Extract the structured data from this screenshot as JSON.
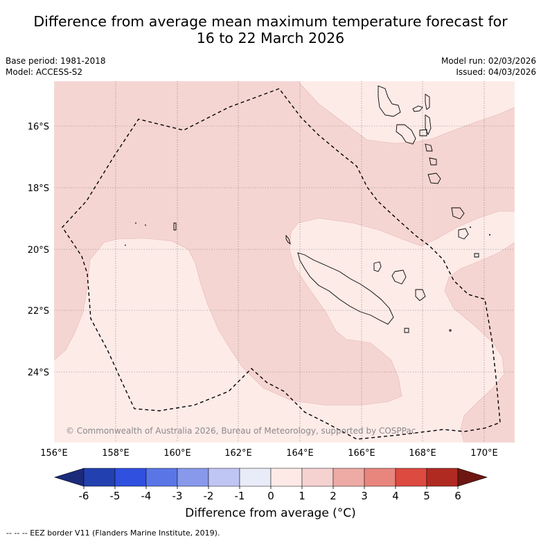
{
  "title_line1": "Difference from average mean maximum temperature forecast for",
  "title_line2": "16 to 22 March 2026",
  "base_period": "Base period: 1981-2018",
  "model": "Model: ACCESS-S2",
  "model_run": "Model run: 02/03/2026",
  "issued": "Issued: 04/03/2026",
  "copyright": "© Commonwealth of Australia 2026, Bureau of Meteorology, supported by COSPPac",
  "lon_ticks": [
    "156°E",
    "158°E",
    "160°E",
    "162°E",
    "164°E",
    "166°E",
    "168°E",
    "170°E"
  ],
  "lat_ticks": [
    "16°S",
    "18°S",
    "20°S",
    "22°S",
    "24°S"
  ],
  "colorbar": {
    "ticks": [
      "-6",
      "-5",
      "-4",
      "-3",
      "-2",
      "-1",
      "0",
      "1",
      "2",
      "3",
      "4",
      "5",
      "6"
    ],
    "colors": [
      "#1b2a7a",
      "#2340b0",
      "#3050e0",
      "#5a76e6",
      "#8898ea",
      "#c0c6f4",
      "#e8ebf8",
      "#fdeae7",
      "#f5d2d0",
      "#eeaaa5",
      "#e8867e",
      "#dc4a40",
      "#b02a22",
      "#6e1712"
    ],
    "label": "Difference from average (°C)"
  },
  "footnote": "-- -- -- EEZ border V11 (Flanders Marine Institute, 2019).",
  "icons": {
    "extend_min": "left-triangle-icon",
    "extend_max": "right-triangle-icon"
  }
}
